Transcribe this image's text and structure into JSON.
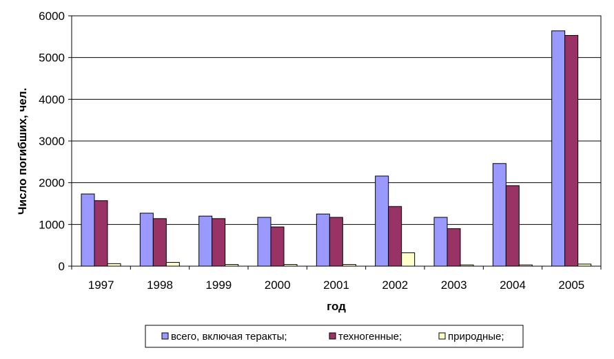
{
  "chart_data": {
    "type": "bar",
    "title": "",
    "xlabel": "год",
    "ylabel": "Число погибших, чел.",
    "categories": [
      "1997",
      "1998",
      "1999",
      "2000",
      "2001",
      "2002",
      "2003",
      "2004",
      "2005"
    ],
    "y_ticks": [
      "0",
      "1000",
      "2000",
      "3000",
      "4000",
      "5000",
      "6000"
    ],
    "ylim": [
      0,
      6000
    ],
    "grid": true,
    "legend_position": "bottom",
    "series": [
      {
        "name": "всего, включая теракты;",
        "color": "#9999ff",
        "values": [
          1730,
          1270,
          1200,
          1170,
          1250,
          2160,
          1170,
          2460,
          5640
        ]
      },
      {
        "name": "техногенные;",
        "color": "#993366",
        "values": [
          1570,
          1140,
          1140,
          940,
          1170,
          1430,
          900,
          1930,
          5530
        ]
      },
      {
        "name": "природные;",
        "color": "#ffffcc",
        "values": [
          60,
          90,
          40,
          40,
          40,
          320,
          30,
          30,
          50
        ]
      }
    ]
  }
}
